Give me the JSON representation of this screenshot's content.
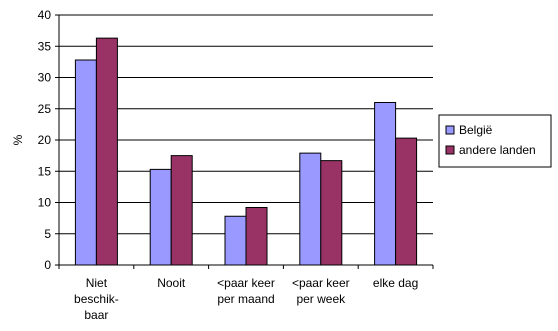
{
  "chart_data": {
    "type": "bar",
    "ylabel": "%",
    "ylim": [
      0,
      40
    ],
    "y_ticks": [
      "0",
      "5",
      "10",
      "15",
      "20",
      "25",
      "30",
      "35",
      "40"
    ],
    "y_tick_values": [
      0,
      5,
      10,
      15,
      20,
      25,
      30,
      35,
      40
    ],
    "grid": true,
    "legend_position": "right",
    "categories": [
      [
        "Niet",
        "beschik-",
        "baar"
      ],
      [
        "Nooit"
      ],
      [
        "<paar keer",
        "per maand"
      ],
      [
        "<paar keer",
        "per week"
      ],
      [
        "elke dag"
      ]
    ],
    "series": [
      {
        "name": "België",
        "color": "#9999ff",
        "values": [
          32.8,
          15.3,
          7.8,
          17.9,
          26.0
        ]
      },
      {
        "name": "andere landen",
        "color": "#993366",
        "values": [
          36.3,
          17.5,
          9.2,
          16.7,
          20.3
        ]
      }
    ]
  }
}
